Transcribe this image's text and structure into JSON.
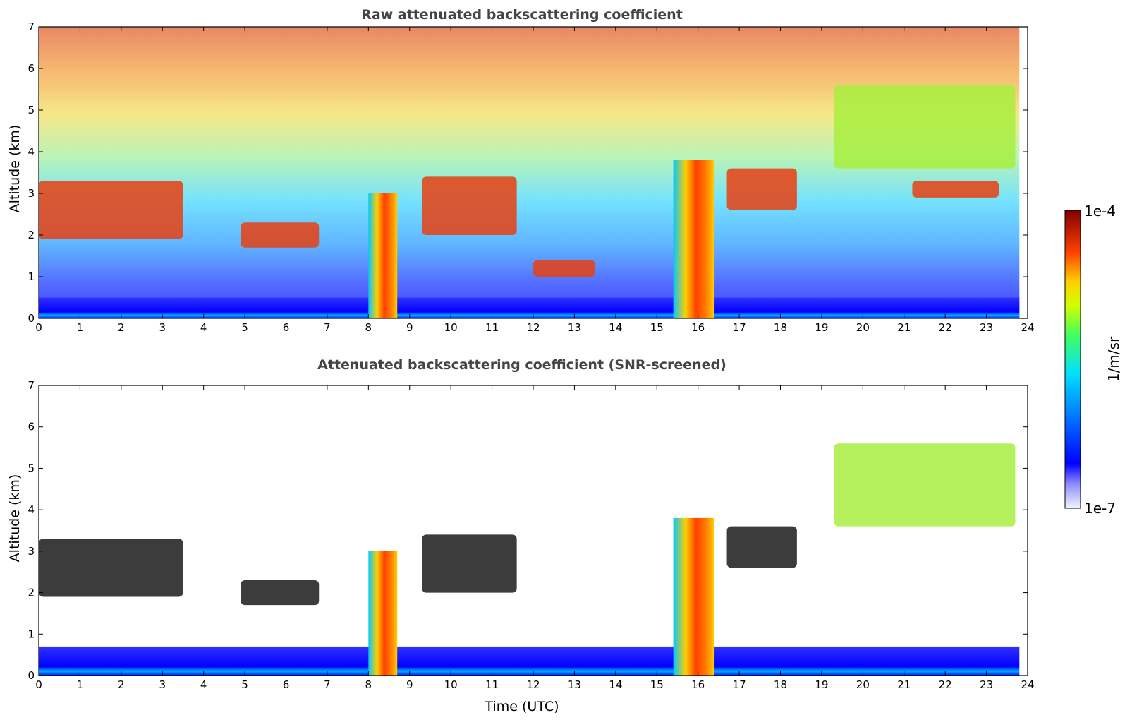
{
  "chart_data": [
    {
      "type": "heatmap",
      "title": "Raw attenuated backscattering coefficient",
      "xlabel": "",
      "ylabel": "Altitude (km)",
      "xlim": [
        0,
        24
      ],
      "ylim": [
        0,
        7
      ],
      "x_ticks": [
        "0",
        "1",
        "2",
        "3",
        "4",
        "5",
        "6",
        "7",
        "8",
        "9",
        "10",
        "11",
        "12",
        "13",
        "14",
        "15",
        "16",
        "17",
        "18",
        "19",
        "20",
        "21",
        "22",
        "23",
        "24"
      ],
      "y_ticks": [
        "0",
        "1",
        "2",
        "3",
        "4",
        "5",
        "6",
        "7"
      ],
      "grid": false,
      "features": [
        {
          "kind": "boundary_layer",
          "x": [
            0,
            23.8
          ],
          "y": [
            0,
            0.5
          ],
          "level": "low"
        },
        {
          "kind": "cloud",
          "x": [
            0,
            3.5
          ],
          "y": [
            1.9,
            3.3
          ],
          "level": "high"
        },
        {
          "kind": "cloud",
          "x": [
            4.9,
            6.8
          ],
          "y": [
            1.7,
            2.3
          ],
          "level": "high"
        },
        {
          "kind": "precipitation_column",
          "x": [
            8.0,
            8.7
          ],
          "y": [
            0,
            3.0
          ],
          "level": "high"
        },
        {
          "kind": "cloud",
          "x": [
            9.3,
            11.6
          ],
          "y": [
            2.0,
            3.4
          ],
          "level": "high"
        },
        {
          "kind": "cloud",
          "x": [
            12.0,
            13.5
          ],
          "y": [
            1.0,
            1.4
          ],
          "level": "high"
        },
        {
          "kind": "precipitation_column",
          "x": [
            15.4,
            16.4
          ],
          "y": [
            0,
            3.8
          ],
          "level": "high"
        },
        {
          "kind": "cloud",
          "x": [
            16.7,
            18.4
          ],
          "y": [
            2.6,
            3.6
          ],
          "level": "high"
        },
        {
          "kind": "cloud",
          "x": [
            21.2,
            23.3
          ],
          "y": [
            2.9,
            3.3
          ],
          "level": "high"
        },
        {
          "kind": "cloud",
          "x": [
            19.3,
            23.7
          ],
          "y": [
            3.6,
            5.6
          ],
          "level": "medium"
        }
      ]
    },
    {
      "type": "heatmap",
      "title": "Attenuated backscattering coefficient (SNR-screened)",
      "xlabel": "Time (UTC)",
      "ylabel": "Altitude (km)",
      "xlim": [
        0,
        24
      ],
      "ylim": [
        0,
        7
      ],
      "x_ticks": [
        "0",
        "1",
        "2",
        "3",
        "4",
        "5",
        "6",
        "7",
        "8",
        "9",
        "10",
        "11",
        "12",
        "13",
        "14",
        "15",
        "16",
        "17",
        "18",
        "19",
        "20",
        "21",
        "22",
        "23",
        "24"
      ],
      "y_ticks": [
        "0",
        "1",
        "2",
        "3",
        "4",
        "5",
        "6",
        "7"
      ],
      "grid": false,
      "features": [
        {
          "kind": "boundary_layer",
          "x": [
            0,
            23.8
          ],
          "y": [
            0,
            0.7
          ],
          "level": "low"
        },
        {
          "kind": "cloud",
          "x": [
            0,
            3.5
          ],
          "y": [
            1.9,
            3.3
          ],
          "level": "masked"
        },
        {
          "kind": "cloud",
          "x": [
            4.9,
            6.8
          ],
          "y": [
            1.7,
            2.3
          ],
          "level": "masked"
        },
        {
          "kind": "precipitation_column",
          "x": [
            8.0,
            8.7
          ],
          "y": [
            0,
            3.0
          ],
          "level": "high"
        },
        {
          "kind": "cloud",
          "x": [
            9.3,
            11.6
          ],
          "y": [
            2.0,
            3.4
          ],
          "level": "masked"
        },
        {
          "kind": "precipitation_column",
          "x": [
            15.4,
            16.4
          ],
          "y": [
            0,
            3.8
          ],
          "level": "high"
        },
        {
          "kind": "cloud",
          "x": [
            16.7,
            18.4
          ],
          "y": [
            2.6,
            3.6
          ],
          "level": "masked"
        },
        {
          "kind": "cloud",
          "x": [
            19.3,
            23.7
          ],
          "y": [
            3.6,
            5.6
          ],
          "level": "medium"
        }
      ]
    }
  ],
  "colorbar": {
    "label": "1/m/sr",
    "max_label": "1e-4",
    "min_label": "1e-7",
    "scale": "log",
    "range": [
      1e-07,
      0.0001
    ],
    "colormap": "jet"
  }
}
